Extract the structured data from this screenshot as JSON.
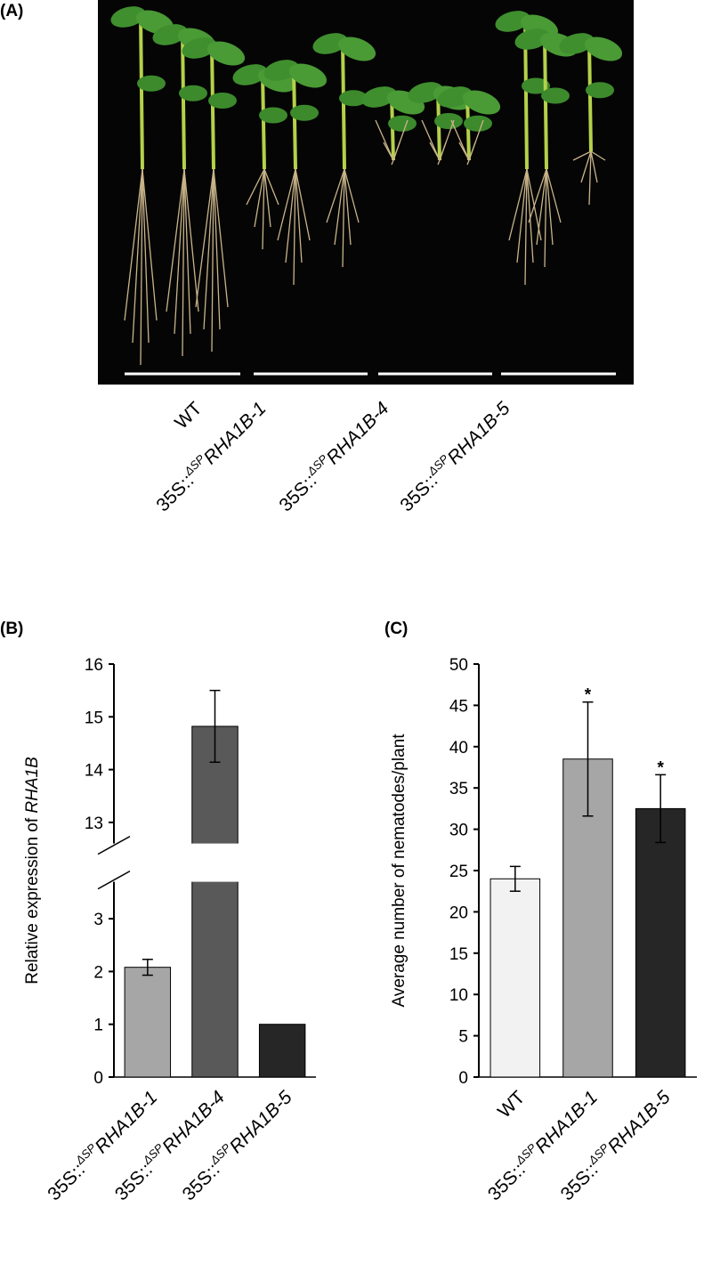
{
  "panel_a": {
    "label": "(A)",
    "categories": [
      "WT",
      {
        "prefix": "35S::",
        "sup": "ΔSP",
        "gene": "RHA1B-1"
      },
      {
        "prefix": "35S::",
        "sup": "ΔSP",
        "gene": "RHA1B-4"
      },
      {
        "prefix": "35S::",
        "sup": "ΔSP",
        "gene": "RHA1B-5"
      }
    ]
  },
  "chart_data": [
    {
      "type": "bar",
      "label": "(B)",
      "ylabel": {
        "text": "Relative expression of ",
        "gene": "RHA1B"
      },
      "categories": [
        {
          "prefix": "35S::",
          "sup": "ΔSP",
          "gene": "RHA1B-1"
        },
        {
          "prefix": "35S::",
          "sup": "ΔSP",
          "gene": "RHA1B-4"
        },
        {
          "prefix": "35S::",
          "sup": "ΔSP",
          "gene": "RHA1B-5"
        }
      ],
      "values": [
        2.08,
        14.82,
        1.0
      ],
      "errors": [
        0.15,
        0.68,
        null
      ],
      "colors": [
        "#a6a6a6",
        "#595959",
        "#262626"
      ],
      "ylim": [
        0,
        16
      ],
      "axis_break": [
        3.7,
        12.6
      ],
      "yticks": [
        0,
        1,
        2,
        3,
        13,
        14,
        15,
        16
      ]
    },
    {
      "type": "bar",
      "label": "(C)",
      "ylabel": {
        "text": "Average number of nematodes/plant"
      },
      "categories": [
        "WT",
        {
          "prefix": "35S::",
          "sup": "ΔSP",
          "gene": "RHA1B-1"
        },
        {
          "prefix": "35S::",
          "sup": "ΔSP",
          "gene": "RHA1B-5"
        }
      ],
      "values": [
        24,
        38.5,
        32.5
      ],
      "errors": [
        1.5,
        6.9,
        4.1
      ],
      "significance": [
        null,
        "*",
        "*"
      ],
      "colors": [
        "#f2f2f2",
        "#a6a6a6",
        "#262626"
      ],
      "ylim": [
        0,
        50
      ],
      "yticks": [
        0,
        5,
        10,
        15,
        20,
        25,
        30,
        35,
        40,
        45,
        50
      ]
    }
  ]
}
